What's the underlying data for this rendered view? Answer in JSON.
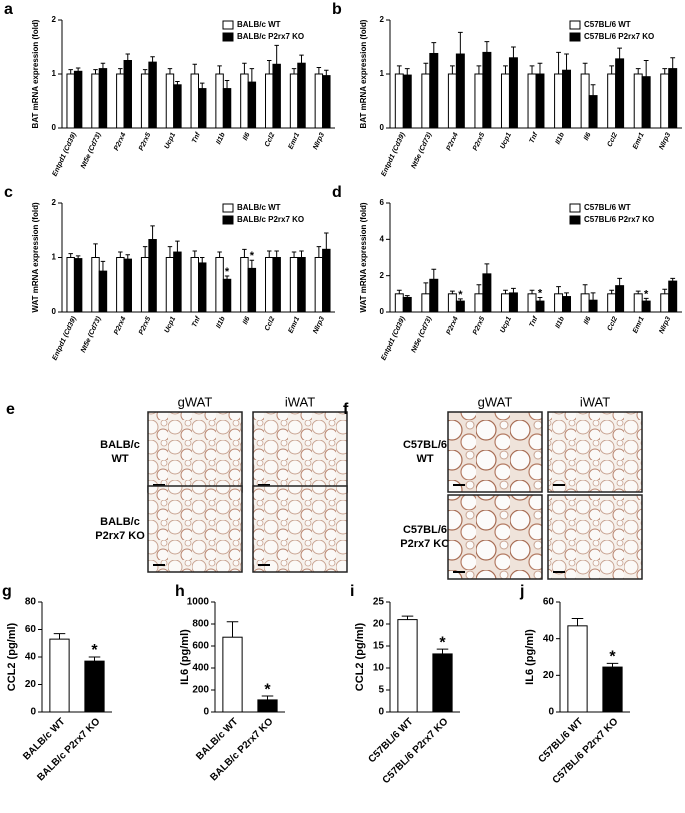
{
  "chart_data": [
    {
      "panel": "a",
      "type": "bar",
      "ylabel": "BAT mRNA expression (fold)",
      "categories": [
        "Entpd1 (Cd39)",
        "Nt5e (Cd73)",
        "P2rx4",
        "P2rx5",
        "Ucp1",
        "Tnf",
        "Il1b",
        "Il6",
        "Ccl2",
        "Emr1",
        "Nlrp3"
      ],
      "ylim": [
        0,
        2
      ],
      "yticks": [
        0,
        1,
        2
      ],
      "legend": "upper right",
      "series": [
        {
          "name": "BALB/c WT",
          "color": "#ffffff",
          "values": [
            1,
            1,
            1,
            1,
            1,
            1,
            1,
            1,
            1,
            1,
            1
          ],
          "errors": [
            0.08,
            0.08,
            0.1,
            0.08,
            0.1,
            0.18,
            0.15,
            0.2,
            0.25,
            0.1,
            0.12
          ]
        },
        {
          "name": "BALB/c P2rx7 KO",
          "color": "#000000",
          "values": [
            1.05,
            1.1,
            1.25,
            1.22,
            0.8,
            0.73,
            0.73,
            0.85,
            1.18,
            1.2,
            0.97
          ],
          "errors": [
            0.06,
            0.1,
            0.12,
            0.1,
            0.06,
            0.1,
            0.15,
            0.25,
            0.35,
            0.15,
            0.1
          ]
        }
      ]
    },
    {
      "panel": "b",
      "type": "bar",
      "ylabel": "BAT mRNA expression (fold)",
      "categories": [
        "Entpd1 (Cd39)",
        "Nt5e (Cd73)",
        "P2rx4",
        "P2rx5",
        "Ucp1",
        "Tnf",
        "Il1b",
        "Il6",
        "Ccl2",
        "Emr1",
        "Nlrp3"
      ],
      "ylim": [
        0,
        2
      ],
      "yticks": [
        0,
        1,
        2
      ],
      "legend": "upper right",
      "series": [
        {
          "name": "C57BL/6 WT",
          "color": "#ffffff",
          "values": [
            1,
            1,
            1,
            1,
            1,
            1,
            1,
            1,
            1,
            1,
            1
          ],
          "errors": [
            0.15,
            0.2,
            0.15,
            0.15,
            0.15,
            0.15,
            0.4,
            0.2,
            0.15,
            0.1,
            0.1
          ]
        },
        {
          "name": "C57BL/6 P2rx7 KO",
          "color": "#000000",
          "values": [
            0.98,
            1.38,
            1.37,
            1.4,
            1.3,
            1.0,
            1.07,
            0.6,
            1.28,
            0.95,
            1.1
          ],
          "errors": [
            0.12,
            0.2,
            0.4,
            0.2,
            0.2,
            0.2,
            0.3,
            0.2,
            0.2,
            0.3,
            0.2
          ]
        }
      ]
    },
    {
      "panel": "c",
      "type": "bar",
      "ylabel": "WAT mRNA expression (fold)",
      "categories": [
        "Entpd1 (Cd39)",
        "Nt5e (Cd73)",
        "P2rx4",
        "P2rx5",
        "Ucp1",
        "Tnf",
        "Il1b",
        "Il6",
        "Ccl2",
        "Emr1",
        "Nlrp3"
      ],
      "ylim": [
        0,
        2
      ],
      "yticks": [
        0,
        1,
        2
      ],
      "legend": "upper right",
      "series": [
        {
          "name": "BALB/c WT",
          "color": "#ffffff",
          "values": [
            1,
            1,
            1,
            1,
            1,
            1,
            1,
            1,
            1,
            1,
            1
          ],
          "errors": [
            0.07,
            0.25,
            0.1,
            0.2,
            0.2,
            0.12,
            0.1,
            0.15,
            0.12,
            0.1,
            0.2
          ]
        },
        {
          "name": "BALB/c P2rx7 KO",
          "color": "#000000",
          "values": [
            0.98,
            0.75,
            0.97,
            1.33,
            1.1,
            0.9,
            0.6,
            0.8,
            1.0,
            1.0,
            1.15
          ],
          "errors": [
            0.05,
            0.18,
            0.08,
            0.25,
            0.2,
            0.1,
            0.06,
            0.15,
            0.12,
            0.12,
            0.3
          ],
          "annotations": [
            null,
            null,
            null,
            null,
            null,
            null,
            "*",
            "*",
            null,
            null,
            null
          ]
        }
      ]
    },
    {
      "panel": "d",
      "type": "bar",
      "ylabel": "WAT mRNA expression (fold)",
      "categories": [
        "Entpd1 (Cd39)",
        "Nt5e (Cd73)",
        "P2rx4",
        "P2rx5",
        "Ucp1",
        "Tnf",
        "Il1b",
        "Il6",
        "Ccl2",
        "Emr1",
        "Nlrp3"
      ],
      "ylim": [
        0,
        6
      ],
      "yticks": [
        0,
        2,
        4,
        6
      ],
      "legend": "upper right",
      "series": [
        {
          "name": "C57BL/6 WT",
          "color": "#ffffff",
          "values": [
            1,
            1,
            1,
            1,
            1,
            1,
            1,
            1,
            1,
            1,
            1
          ],
          "errors": [
            0.2,
            0.6,
            0.15,
            0.5,
            0.2,
            0.2,
            0.4,
            0.5,
            0.2,
            0.15,
            0.25
          ]
        },
        {
          "name": "C57BL/6 P2rx7 KO",
          "color": "#000000",
          "values": [
            0.8,
            1.8,
            0.6,
            2.1,
            1.05,
            0.6,
            0.85,
            0.65,
            1.45,
            0.6,
            1.7
          ],
          "errors": [
            0.1,
            0.55,
            0.12,
            0.55,
            0.25,
            0.2,
            0.2,
            0.4,
            0.4,
            0.15,
            0.15
          ],
          "annotations": [
            null,
            null,
            "*",
            null,
            null,
            "*",
            null,
            null,
            null,
            "*",
            null
          ]
        }
      ]
    },
    {
      "panel": "g",
      "type": "bar",
      "ylabel": "CCL2 (pg/ml)",
      "categories": [
        "BALB/c  WT",
        "BALB/c P2rx7 KO"
      ],
      "values": [
        53,
        37
      ],
      "errors": [
        4,
        3
      ],
      "annotations": [
        null,
        "*"
      ],
      "colors": [
        "#ffffff",
        "#000000"
      ],
      "ylim": [
        0,
        80
      ],
      "yticks": [
        0,
        20,
        40,
        60,
        80
      ]
    },
    {
      "panel": "h",
      "type": "bar",
      "ylabel": "IL6 (pg/ml)",
      "categories": [
        "BALB/c  WT",
        "BALB/c P2rx7 KO"
      ],
      "values": [
        680,
        110
      ],
      "errors": [
        140,
        35
      ],
      "annotations": [
        null,
        "*"
      ],
      "colors": [
        "#ffffff",
        "#000000"
      ],
      "ylim": [
        0,
        1000
      ],
      "yticks": [
        0,
        200,
        400,
        600,
        800,
        1000
      ]
    },
    {
      "panel": "i",
      "type": "bar",
      "ylabel": "CCL2 (pg/ml)",
      "categories": [
        "C57BL/6  WT",
        "C57BL/6 P2rx7 KO"
      ],
      "values": [
        21,
        13.2
      ],
      "errors": [
        0.8,
        1.1
      ],
      "annotations": [
        null,
        "*"
      ],
      "colors": [
        "#ffffff",
        "#000000"
      ],
      "ylim": [
        0,
        25
      ],
      "yticks": [
        0,
        5,
        10,
        15,
        20,
        25
      ]
    },
    {
      "panel": "j",
      "type": "bar",
      "ylabel": "IL6 (pg/ml)",
      "categories": [
        "C57BL/6  WT",
        "C57BL/6 P2rx7 KO"
      ],
      "values": [
        47,
        24.5
      ],
      "errors": [
        4,
        2
      ],
      "annotations": [
        null,
        "*"
      ],
      "colors": [
        "#ffffff",
        "#000000"
      ],
      "ylim": [
        0,
        60
      ],
      "yticks": [
        0,
        20,
        40,
        60
      ]
    }
  ],
  "micrographs": [
    {
      "panel": "e",
      "columns": [
        "gWAT",
        "iWAT"
      ],
      "rows": [
        [
          "BALB/c",
          "WT"
        ],
        [
          "BALB/c",
          "P2rx7 KO"
        ]
      ]
    },
    {
      "panel": "f",
      "columns": [
        "gWAT",
        "iWAT"
      ],
      "rows": [
        [
          "C57BL/6",
          "WT"
        ],
        [
          "C57BL/6",
          "P2rx7 KO"
        ]
      ]
    }
  ]
}
